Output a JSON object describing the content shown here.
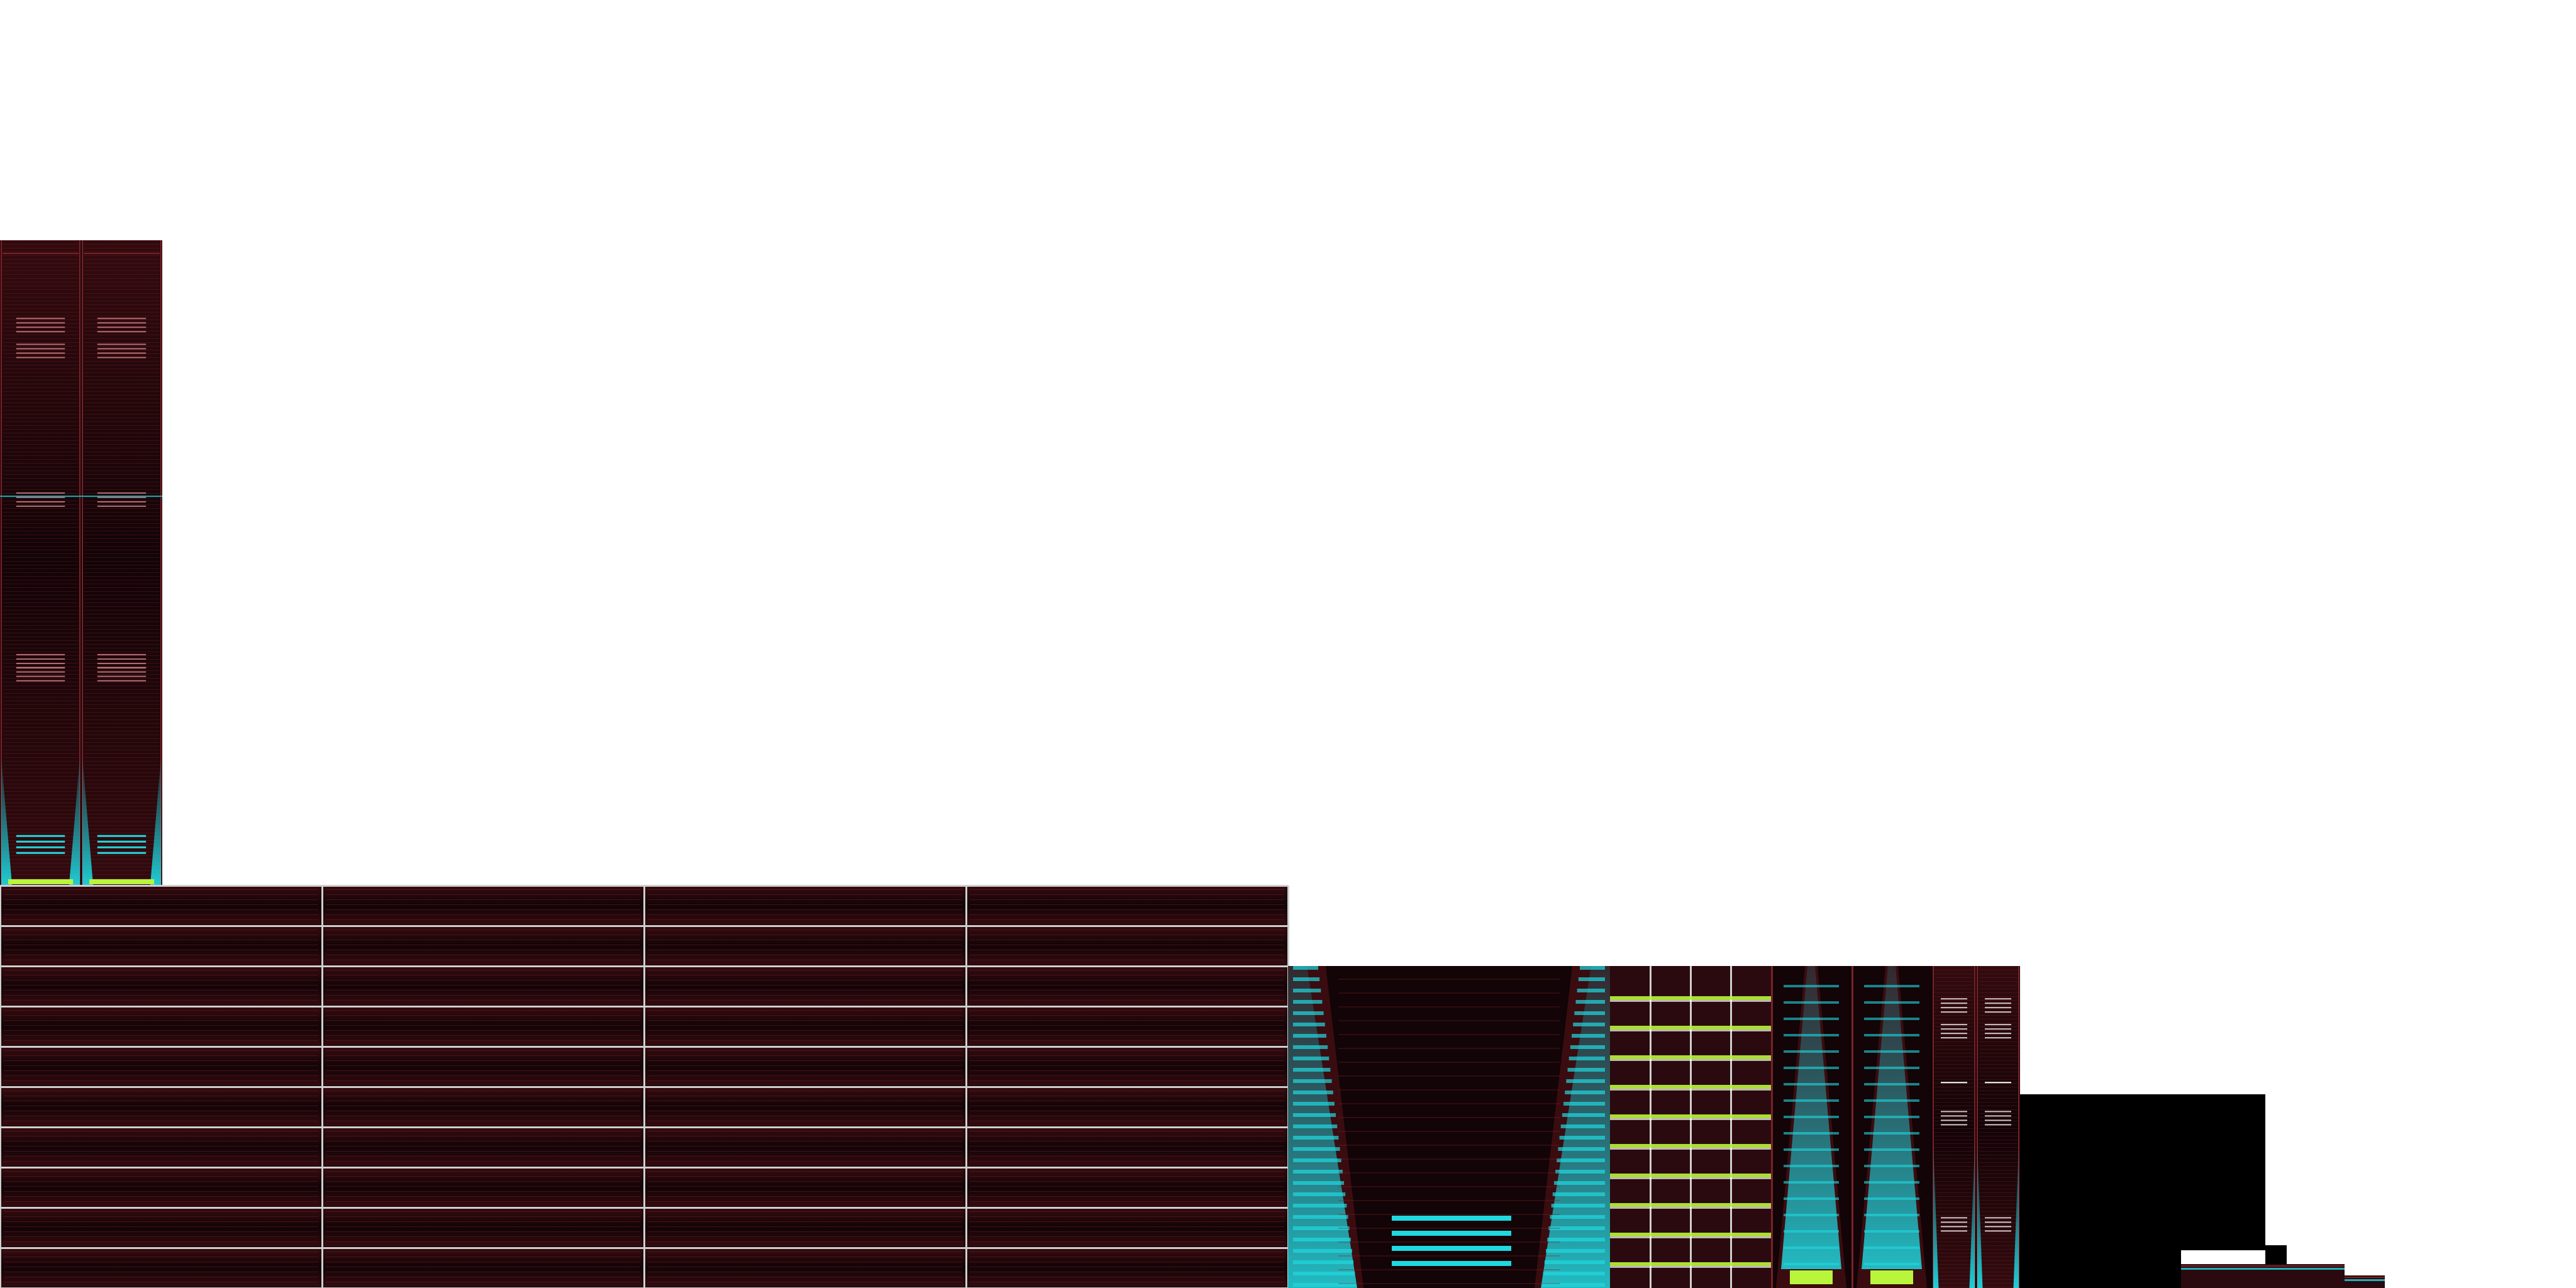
{
  "image_kind": "texture-atlas",
  "background_color": "#ffffff",
  "palette": {
    "dark_base": "#120407",
    "dark_red": "#3a0c10",
    "mid_red": "#7a2228",
    "grid_line": "#cfcfcf",
    "cyan": "#1fd8e0",
    "cyan_soft": "#16a9b5",
    "green_yellow": "#b9f53a",
    "black": "#000000"
  },
  "regions": [
    {
      "name": "tall-twin-column-panel",
      "pattern": "twin-columns"
    },
    {
      "name": "grid-panel-large",
      "pattern": "grid-4x10"
    },
    {
      "name": "funnel-panel",
      "pattern": "funnel"
    },
    {
      "name": "ladder-panel",
      "pattern": "ladder"
    },
    {
      "name": "small-funnel-panel-a",
      "pattern": "small-funnel"
    },
    {
      "name": "small-funnel-panel-b",
      "pattern": "small-funnel"
    },
    {
      "name": "narrow-twin-column-panel",
      "pattern": "narrow-twin"
    },
    {
      "name": "black-block-large",
      "pattern": "solid-black"
    },
    {
      "name": "black-block-tall",
      "pattern": "solid-black"
    },
    {
      "name": "black-block-small",
      "pattern": "solid-black"
    },
    {
      "name": "thin-strip-a",
      "pattern": "thin-strip"
    },
    {
      "name": "thin-strip-b",
      "pattern": "thin-strip"
    }
  ]
}
